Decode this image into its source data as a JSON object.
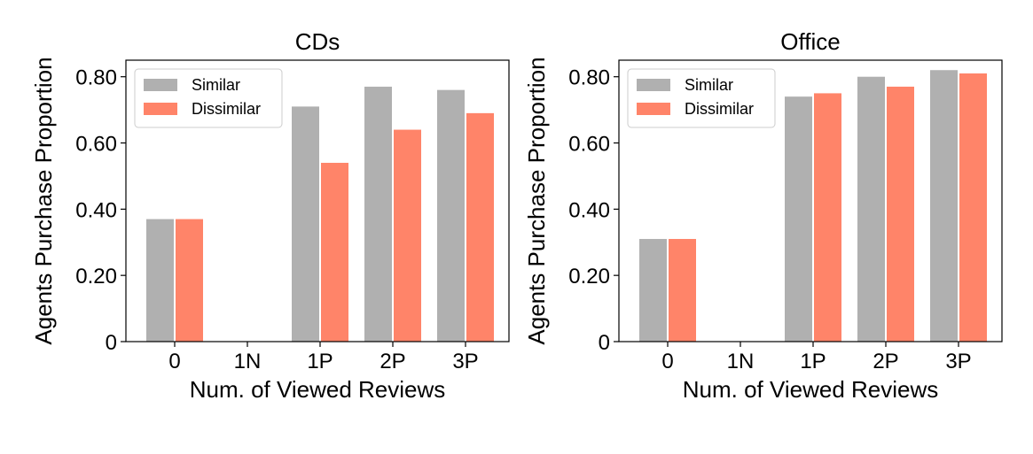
{
  "chart_data": [
    {
      "type": "bar",
      "title": "CDs",
      "xlabel": "Num. of Viewed Reviews",
      "ylabel": "Agents Purchase Proportion",
      "categories": [
        "0",
        "1N",
        "1P",
        "2P",
        "3P"
      ],
      "yticks": [
        "0",
        "0.20",
        "0.40",
        "0.60",
        "0.80"
      ],
      "ylim": [
        0,
        0.85
      ],
      "legend_position": "top-left",
      "series": [
        {
          "name": "Similar",
          "color": "#b0b0b0",
          "values": [
            0.37,
            0,
            0.71,
            0.77,
            0.76
          ]
        },
        {
          "name": "Dissimilar",
          "color": "#ff8469",
          "values": [
            0.37,
            0,
            0.54,
            0.64,
            0.69
          ]
        }
      ]
    },
    {
      "type": "bar",
      "title": "Office",
      "xlabel": "Num. of Viewed Reviews",
      "ylabel": "Agents Purchase Proportion",
      "categories": [
        "0",
        "1N",
        "1P",
        "2P",
        "3P"
      ],
      "yticks": [
        "0",
        "0.20",
        "0.40",
        "0.60",
        "0.80"
      ],
      "ylim": [
        0,
        0.85
      ],
      "legend_position": "top-left",
      "series": [
        {
          "name": "Similar",
          "color": "#b0b0b0",
          "values": [
            0.31,
            0,
            0.74,
            0.8,
            0.82
          ]
        },
        {
          "name": "Dissimilar",
          "color": "#ff8469",
          "values": [
            0.31,
            0,
            0.75,
            0.77,
            0.81
          ]
        }
      ]
    }
  ]
}
